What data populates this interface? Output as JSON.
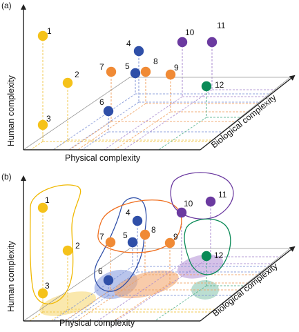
{
  "colors": {
    "yellow": "#f5c21a",
    "orange": "#f08a35",
    "blue": "#2f4fa8",
    "purple": "#6b3aa0",
    "green": "#0a8a57",
    "grid_yellow": "#f0c850",
    "grid_orange": "#f0a060",
    "grid_blue": "#7f93d6",
    "grid_purple": "#a98ad0",
    "grid_green": "#54b28e",
    "axis": "#222222"
  },
  "panels": [
    {
      "id": "a",
      "label": "(a)",
      "x_axis_label": "Physical complexity",
      "y_axis_label": "Human complexity",
      "z_axis_label": "Biological complexity",
      "points": [
        {
          "label": "1",
          "color": "yellow"
        },
        {
          "label": "2",
          "color": "yellow"
        },
        {
          "label": "3",
          "color": "yellow"
        },
        {
          "label": "4",
          "color": "blue"
        },
        {
          "label": "5",
          "color": "blue"
        },
        {
          "label": "6",
          "color": "blue"
        },
        {
          "label": "7",
          "color": "orange"
        },
        {
          "label": "8",
          "color": "orange"
        },
        {
          "label": "9",
          "color": "orange"
        },
        {
          "label": "10",
          "color": "purple"
        },
        {
          "label": "11",
          "color": "purple"
        },
        {
          "label": "12",
          "color": "green"
        }
      ]
    },
    {
      "id": "b",
      "label": "(b)",
      "x_axis_label": "Physical complexity",
      "y_axis_label": "Human complexity",
      "z_axis_label": "Biological complexity",
      "points": [
        {
          "label": "1",
          "color": "yellow"
        },
        {
          "label": "2",
          "color": "yellow"
        },
        {
          "label": "3",
          "color": "yellow"
        },
        {
          "label": "4",
          "color": "blue"
        },
        {
          "label": "5",
          "color": "blue"
        },
        {
          "label": "6",
          "color": "blue"
        },
        {
          "label": "7",
          "color": "orange"
        },
        {
          "label": "8",
          "color": "orange"
        },
        {
          "label": "9",
          "color": "orange"
        },
        {
          "label": "10",
          "color": "purple"
        },
        {
          "label": "11",
          "color": "purple"
        },
        {
          "label": "12",
          "color": "green"
        }
      ],
      "clusters": [
        {
          "name": "yellow-cluster",
          "color": "yellow"
        },
        {
          "name": "blue-cluster",
          "color": "blue"
        },
        {
          "name": "orange-cluster",
          "color": "orange"
        },
        {
          "name": "purple-cluster",
          "color": "purple"
        },
        {
          "name": "green-cluster",
          "color": "green"
        }
      ]
    }
  ]
}
